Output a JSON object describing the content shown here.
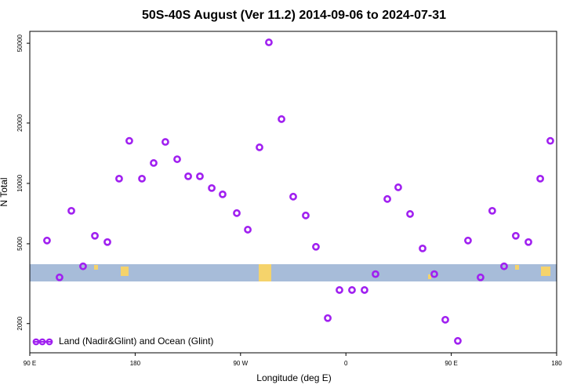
{
  "chart_data": {
    "type": "scatter",
    "title": "50S-40S August (Ver 11.2)   2014-09-06 to 2024-07-31",
    "x_label": "Longitude (deg E)",
    "y_label": "N Total",
    "log_y": true,
    "xlim": [
      90,
      540
    ],
    "ylim": [
      1430,
      57300
    ],
    "xticks": [
      {
        "value": 90,
        "label": "90 E"
      },
      {
        "value": 180,
        "label": "180"
      },
      {
        "value": 270,
        "label": "90 W"
      },
      {
        "value": 360,
        "label": "0"
      },
      {
        "value": 450,
        "label": "90 E"
      },
      {
        "value": 540,
        "label": "180"
      }
    ],
    "yticks": [
      2000,
      5000,
      10000,
      20000,
      50000
    ],
    "legend_position": "lower left",
    "series": [
      {
        "name": "Land (Nadir&Glint) and Ocean (Glint)",
        "color": "#a020f0",
        "x": [
          104.7,
          115.4,
          125.5,
          135.5,
          145.6,
          156.3,
          166.3,
          175,
          185.8,
          195.8,
          205.8,
          215.9,
          225.3,
          235.3,
          245.4,
          254.7,
          266.8,
          276.2,
          286.2,
          294.2,
          305,
          315,
          325.7,
          334.4,
          344.5,
          354.5,
          365.2,
          375.9,
          385.3,
          395.4,
          404.7,
          414.8,
          425.5,
          435.5,
          444.9,
          455.6,
          464.3,
          475,
          485,
          495.1,
          505.1,
          515.9,
          526,
          534.6
        ],
        "values": [
          5190,
          3400,
          7300,
          3860,
          5480,
          5100,
          10560,
          16300,
          10560,
          12640,
          16100,
          13200,
          10850,
          10850,
          9480,
          8820,
          7110,
          5880,
          15130,
          50500,
          20920,
          8590,
          6920,
          4830,
          2130,
          2940,
          2940,
          2940,
          3530,
          8360,
          9560,
          7040,
          4740,
          3530,
          2090,
          1640,
          5190,
          3400,
          7300,
          3860,
          5480,
          5100,
          10560,
          16300
        ]
      }
    ]
  }
}
